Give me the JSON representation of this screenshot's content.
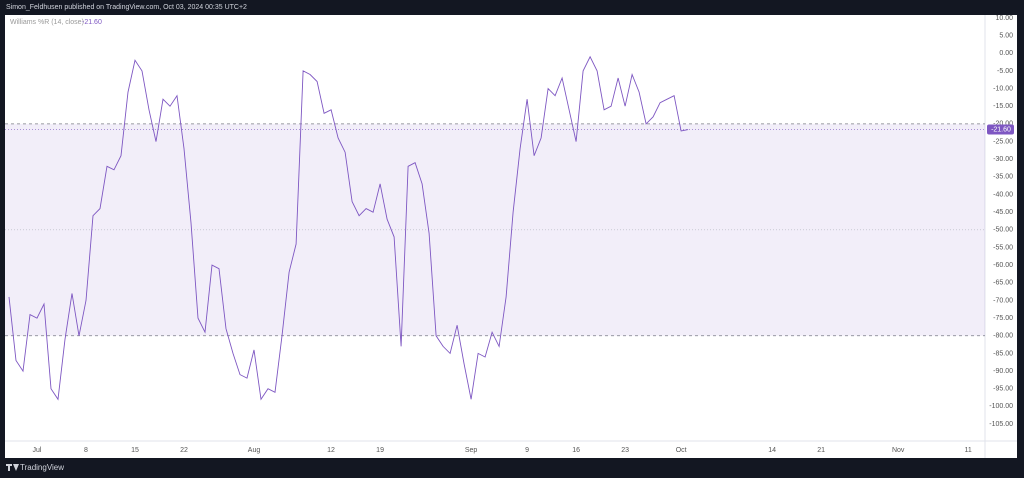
{
  "header": "Simon_Feldhusen published on TradingView.com, Oct 03, 2024 00:35 UTC+2",
  "footer": "TradingView",
  "chart_data": {
    "type": "line",
    "legend_title": "Williams %R (14, close)",
    "current_value": {
      "value": -21.6,
      "label": "-21.60"
    },
    "bands": {
      "upper": -20,
      "middle": -50,
      "lower": -80,
      "color": "#7e57c2"
    },
    "x": [
      -4,
      -3,
      -2,
      -1,
      0,
      1,
      2,
      3,
      4,
      5,
      6,
      7,
      8,
      9,
      10,
      11,
      12,
      13,
      14,
      15,
      16,
      17,
      18,
      19,
      20,
      21,
      22,
      23,
      24,
      25,
      26,
      27,
      28,
      29,
      30,
      31,
      32,
      33,
      34,
      35,
      36,
      37,
      38,
      39,
      40,
      41,
      42,
      43,
      44,
      45,
      46,
      47,
      48,
      49,
      50,
      51,
      52,
      53,
      54,
      55,
      56,
      57,
      58,
      59,
      60,
      61,
      62,
      63,
      64,
      65,
      66,
      67,
      68,
      69,
      70,
      71,
      72,
      73,
      74,
      75,
      76,
      77,
      78,
      79,
      80,
      81,
      82,
      83,
      84,
      85,
      86,
      87,
      88,
      89,
      90,
      91,
      92,
      93
    ],
    "series": [
      {
        "name": "Williams %R",
        "color": "#7e57c2",
        "values": [
          -69,
          -87,
          -90,
          -74,
          -75,
          -71,
          -95,
          -98,
          -81,
          -68,
          -80,
          -70,
          -46,
          -44,
          -32,
          -33,
          -29,
          -11,
          -2,
          -5,
          -16,
          -25,
          -13,
          -15,
          -12,
          -27,
          -48,
          -75,
          -79,
          -60,
          -61,
          -78,
          -85,
          -91,
          -92,
          -84,
          -98,
          -95,
          -96,
          -80,
          -62,
          -54,
          -5,
          -6,
          -8,
          -17,
          -16,
          -24,
          -28,
          -42,
          -46,
          -44,
          -45,
          -37,
          -47,
          -52,
          -83,
          -32,
          -31,
          -37,
          -51,
          -80,
          -83,
          -85,
          -77,
          -88,
          -98,
          -85,
          -86,
          -79,
          -83,
          -69,
          -45,
          -27,
          -13,
          -29,
          -24,
          -10,
          -12,
          -7,
          -16,
          -25,
          -5,
          -1,
          -5,
          -16,
          -15,
          -7,
          -15,
          -6,
          -11,
          -20,
          -18,
          -14,
          -13,
          -12,
          -22,
          -21.6
        ]
      }
    ],
    "xlim": [
      -4.57,
      135.4
    ],
    "xticks": [
      {
        "value": 0,
        "label": "Jul"
      },
      {
        "value": 7,
        "label": "8"
      },
      {
        "value": 14,
        "label": "15"
      },
      {
        "value": 21,
        "label": "22"
      },
      {
        "value": 31,
        "label": "Aug"
      },
      {
        "value": 42,
        "label": "12"
      },
      {
        "value": 49,
        "label": "19"
      },
      {
        "value": 62,
        "label": "Sep"
      },
      {
        "value": 70,
        "label": "9"
      },
      {
        "value": 77,
        "label": "16"
      },
      {
        "value": 84,
        "label": "23"
      },
      {
        "value": 92,
        "label": "Oct"
      },
      {
        "value": 105,
        "label": "14"
      },
      {
        "value": 112,
        "label": "21"
      },
      {
        "value": 123,
        "label": "Nov"
      },
      {
        "value": 133,
        "label": "11"
      }
    ],
    "ylim": [
      10.84,
      -109.8
    ],
    "yticks": [
      {
        "value": 10,
        "label": "10.00"
      },
      {
        "value": 5,
        "label": "5.00"
      },
      {
        "value": 0,
        "label": "0.00"
      },
      {
        "value": -5,
        "label": "-5.00"
      },
      {
        "value": -10,
        "label": "-10.00"
      },
      {
        "value": -15,
        "label": "-15.00"
      },
      {
        "value": -20,
        "label": "-20.00"
      },
      {
        "value": -25,
        "label": "-25.00"
      },
      {
        "value": -30,
        "label": "-30.00"
      },
      {
        "value": -35,
        "label": "-35.00"
      },
      {
        "value": -40,
        "label": "-40.00"
      },
      {
        "value": -45,
        "label": "-45.00"
      },
      {
        "value": -50,
        "label": "-50.00"
      },
      {
        "value": -55,
        "label": "-55.00"
      },
      {
        "value": -60,
        "label": "-60.00"
      },
      {
        "value": -65,
        "label": "-65.00"
      },
      {
        "value": -70,
        "label": "-70.00"
      },
      {
        "value": -75,
        "label": "-75.00"
      },
      {
        "value": -80,
        "label": "-80.00"
      },
      {
        "value": -85,
        "label": "-85.00"
      },
      {
        "value": -90,
        "label": "-90.00"
      },
      {
        "value": -95,
        "label": "-95.00"
      },
      {
        "value": -100,
        "label": "-100.00"
      },
      {
        "value": -105,
        "label": "-105.00"
      }
    ]
  }
}
